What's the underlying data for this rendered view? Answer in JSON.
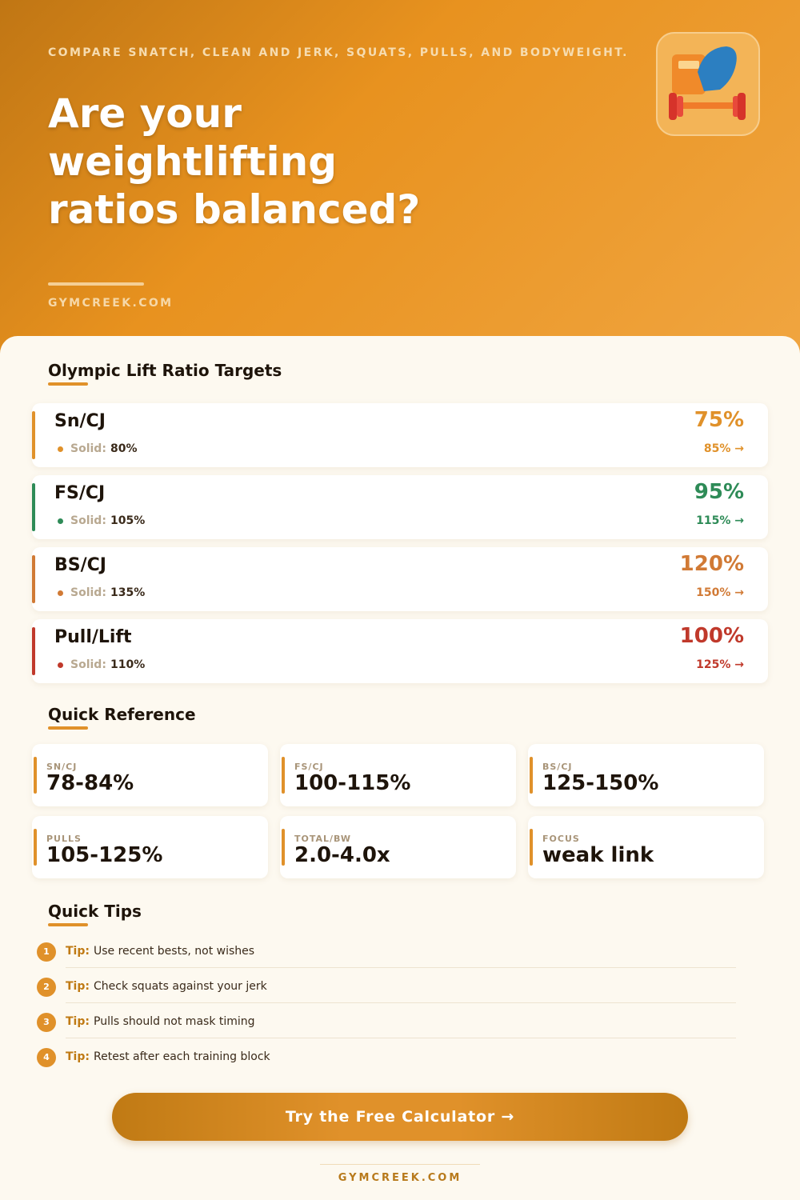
{
  "header": {
    "subtitle": "COMPARE SNATCH, CLEAN AND JERK, SQUATS, PULLS, AND BODYWEIGHT.",
    "title": "Are your weightlifting ratios balanced?",
    "site": "GYMCREEK.COM"
  },
  "ratios": {
    "title": "Olympic Lift Ratio Targets",
    "items": [
      {
        "name": "Sn/CJ",
        "solid_label": "Solid:",
        "solid": "80%",
        "low": "75%",
        "high": "85% →",
        "color": "#e0912a"
      },
      {
        "name": "FS/CJ",
        "solid_label": "Solid:",
        "solid": "105%",
        "low": "95%",
        "high": "115% →",
        "color": "#2e8b57"
      },
      {
        "name": "BS/CJ",
        "solid_label": "Solid:",
        "solid": "135%",
        "low": "120%",
        "high": "150% →",
        "color": "#d17a35"
      },
      {
        "name": "Pull/Lift",
        "solid_label": "Solid:",
        "solid": "110%",
        "low": "100%",
        "high": "125% →",
        "color": "#c0392b"
      }
    ]
  },
  "reference": {
    "title": "Quick Reference",
    "items": [
      {
        "label": "SN/CJ",
        "value": "78-84%"
      },
      {
        "label": "FS/CJ",
        "value": "100-115%"
      },
      {
        "label": "BS/CJ",
        "value": "125-150%"
      },
      {
        "label": "PULLS",
        "value": "105-125%"
      },
      {
        "label": "TOTAL/BW",
        "value": "2.0-4.0x"
      },
      {
        "label": "FOCUS",
        "value": "weak link"
      }
    ]
  },
  "tips": {
    "title": "Quick Tips",
    "items": [
      {
        "number": "1",
        "label": "Tip:",
        "text": "Use recent bests, not wishes"
      },
      {
        "number": "2",
        "label": "Tip:",
        "text": "Check squats against your jerk"
      },
      {
        "number": "3",
        "label": "Tip:",
        "text": "Pulls should not mask timing"
      },
      {
        "number": "4",
        "label": "Tip:",
        "text": "Retest after each training block"
      }
    ]
  },
  "cta": "Try the Free Calculator →",
  "footer": "GYMCREEK.COM"
}
